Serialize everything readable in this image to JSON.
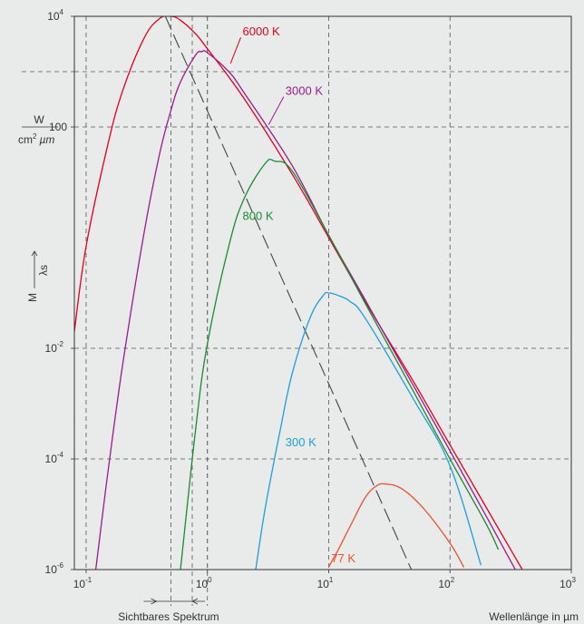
{
  "chart_data": {
    "type": "line",
    "x_scale": "log",
    "y_scale": "log",
    "xlim": [
      0.08,
      1000
    ],
    "ylim": [
      1e-06,
      10000
    ],
    "x_ticks": [
      {
        "value": 0.1,
        "base": "10",
        "exp": "-1"
      },
      {
        "value": 1,
        "base": "10",
        "exp": "0"
      },
      {
        "value": 10,
        "base": "10",
        "exp": "1"
      },
      {
        "value": 100,
        "base": "10",
        "exp": "2"
      },
      {
        "value": 1000,
        "base": "10",
        "exp": "3"
      }
    ],
    "y_ticks": [
      {
        "value": 10000,
        "base": "10",
        "exp": "4",
        "text": ""
      },
      {
        "value": 100,
        "base": "",
        "exp": "",
        "text": "100"
      },
      {
        "value": 0.01,
        "base": "10",
        "exp": "-2",
        "text": ""
      },
      {
        "value": 0.0001,
        "base": "10",
        "exp": "-4",
        "text": ""
      },
      {
        "value": 1e-06,
        "base": "10",
        "exp": "-6",
        "text": ""
      }
    ],
    "y_unit": {
      "numerator": "W",
      "denominator": "cm",
      "den_exp": "2",
      "den_rest": "µm",
      "value": 1000
    },
    "ylabel": {
      "main": "M",
      "sub": "λs"
    },
    "xlabel": "Wellenlänge in µm",
    "visible_spectrum_label": "Sichtbares Spektrum",
    "visible_spectrum_range": [
      0.38,
      0.75
    ],
    "grid": true,
    "extra_vgrid": [
      0.5,
      0.75,
      1
    ],
    "wien_line": {
      "x": [
        0.45,
        48
      ],
      "y": [
        10000,
        1e-06
      ]
    },
    "series": [
      {
        "name": "6000 K",
        "color": "#e2001a",
        "label_x": 1.95,
        "label_y": 4500,
        "x": [
          0.08,
          0.1,
          0.15,
          0.2,
          0.3,
          0.4,
          0.5,
          0.6,
          0.8,
          1,
          2,
          5,
          10,
          20,
          50,
          100,
          200,
          400
        ],
        "y": [
          0.02,
          0.7,
          45,
          450,
          4000,
          9000,
          10000,
          8500,
          4800,
          2600,
          330,
          14,
          1,
          0.07,
          0.0025,
          0.00018,
          1.3e-05,
          9.5e-07
        ]
      },
      {
        "name": "3000 K",
        "color": "#9c1a8f",
        "label_x": 4.4,
        "label_y": 380,
        "x": [
          0.12,
          0.15,
          0.2,
          0.3,
          0.4,
          0.5,
          0.6,
          0.8,
          0.9,
          1,
          1.5,
          2,
          5,
          10,
          20,
          50,
          100,
          200,
          350
        ],
        "y": [
          1e-06,
          5e-05,
          0.005,
          1.2,
          30,
          200,
          650,
          2000,
          2300,
          2200,
          1000,
          420,
          20,
          1.1,
          0.075,
          0.0021,
          0.00014,
          9e-06,
          9.5e-07
        ]
      },
      {
        "name": "800 K",
        "color": "#1a8c2e",
        "label_x": 1.95,
        "label_y": 2.1,
        "x": [
          0.6,
          0.8,
          1,
          1.5,
          2,
          3,
          3.6,
          5,
          10,
          20,
          50,
          100,
          200,
          250
        ],
        "y": [
          1e-06,
          0.00035,
          0.012,
          0.7,
          5,
          22,
          24,
          16,
          1.1,
          0.065,
          0.00165,
          0.0001,
          6.5e-06,
          2.3e-06
        ]
      },
      {
        "name": "300 K",
        "color": "#1aa0dc",
        "label_x": 4.4,
        "label_y": 0.00017,
        "x": [
          2.5,
          3,
          4,
          5,
          7,
          9,
          10,
          12,
          15,
          20,
          50,
          100,
          180
        ],
        "y": [
          1e-06,
          1.3e-05,
          0.00035,
          0.0035,
          0.035,
          0.09,
          0.1,
          0.09,
          0.07,
          0.035,
          0.0012,
          7.5e-05,
          1.2e-06
        ]
      },
      {
        "name": "77 K",
        "color": "#e8522b",
        "label_x": 10.5,
        "label_y": 1.35e-06,
        "x": [
          10,
          12,
          15,
          20,
          25,
          30,
          40,
          60,
          100,
          130
        ],
        "y": [
          1.12e-06,
          2.3e-06,
          6e-06,
          2e-05,
          3.3e-05,
          3.5e-05,
          2.9e-05,
          1.3e-05,
          3e-06,
          1.1e-06
        ]
      }
    ]
  }
}
